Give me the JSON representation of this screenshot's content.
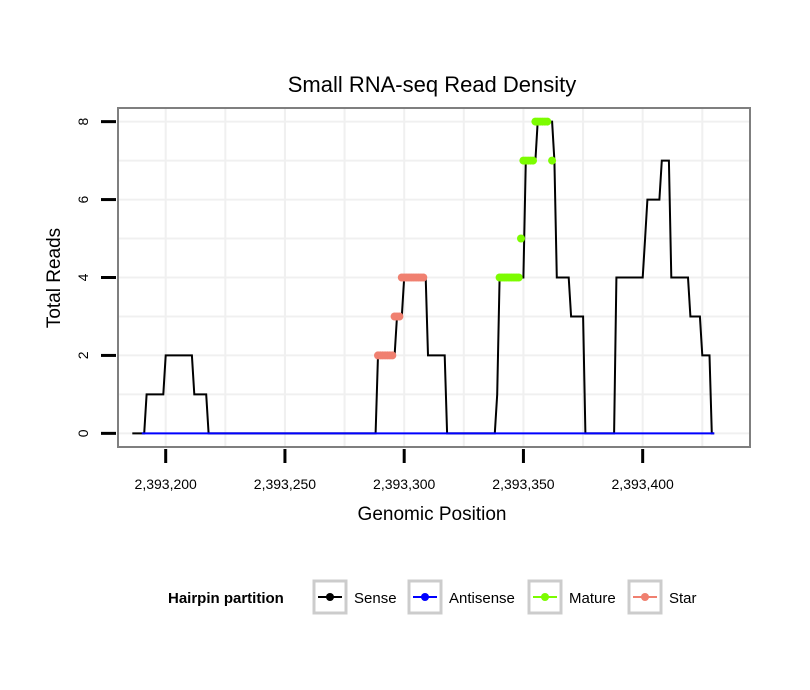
{
  "chart_data": {
    "type": "line",
    "title": "Small RNA-seq Read Density",
    "xlabel": "Genomic Position",
    "ylabel": "Total Reads",
    "xlim": [
      2393180,
      2393445
    ],
    "ylim": [
      -0.35,
      8.35
    ],
    "x_ticks": [
      2393200,
      2393250,
      2393300,
      2393350,
      2393400
    ],
    "x_tick_labels": [
      "2,393,200",
      "2,393,250",
      "2,393,300",
      "2,393,350",
      "2,393,400"
    ],
    "y_ticks": [
      0,
      2,
      4,
      6,
      8
    ],
    "y_tick_labels": [
      "0",
      "2",
      "4",
      "6",
      "8"
    ],
    "legend": {
      "title": "Hairpin partition",
      "position": "bottom",
      "entries": [
        {
          "label": "Sense",
          "color": "#000000"
        },
        {
          "label": "Antisense",
          "color": "#0000ff"
        },
        {
          "label": "Mature",
          "color": "#7cfc00"
        },
        {
          "label": "Star",
          "color": "#f08070"
        }
      ]
    },
    "series": [
      {
        "name": "Sense",
        "color": "#000000",
        "points": [
          [
            2393186,
            0
          ],
          [
            2393191,
            0
          ],
          [
            2393192,
            1
          ],
          [
            2393199,
            1
          ],
          [
            2393200,
            2
          ],
          [
            2393211,
            2
          ],
          [
            2393212,
            1
          ],
          [
            2393217,
            1
          ],
          [
            2393218,
            0
          ],
          [
            2393288,
            0
          ],
          [
            2393289,
            2
          ],
          [
            2393296,
            2
          ],
          [
            2393297,
            3
          ],
          [
            2393299,
            3
          ],
          [
            2393300,
            4
          ],
          [
            2393309,
            4
          ],
          [
            2393310,
            2
          ],
          [
            2393317,
            2
          ],
          [
            2393318,
            0
          ],
          [
            2393338,
            0
          ],
          [
            2393339,
            1
          ],
          [
            2393340,
            4
          ],
          [
            2393350,
            4
          ],
          [
            2393351,
            7
          ],
          [
            2393355,
            7
          ],
          [
            2393356,
            8
          ],
          [
            2393362,
            8
          ],
          [
            2393363,
            7
          ],
          [
            2393364,
            4
          ],
          [
            2393369,
            4
          ],
          [
            2393370,
            3
          ],
          [
            2393375,
            3
          ],
          [
            2393376,
            0
          ],
          [
            2393388,
            0
          ],
          [
            2393389,
            4
          ],
          [
            2393400,
            4
          ],
          [
            2393401,
            5
          ],
          [
            2393402,
            6
          ],
          [
            2393407,
            6
          ],
          [
            2393408,
            7
          ],
          [
            2393411,
            7
          ],
          [
            2393412,
            4
          ],
          [
            2393419,
            4
          ],
          [
            2393420,
            3
          ],
          [
            2393424,
            3
          ],
          [
            2393425,
            2
          ],
          [
            2393428,
            2
          ],
          [
            2393429,
            0
          ],
          [
            2393430,
            0
          ]
        ]
      },
      {
        "name": "Antisense",
        "color": "#0000ff",
        "points": [
          [
            2393190,
            0
          ],
          [
            2393430,
            0
          ]
        ]
      },
      {
        "name": "Mature",
        "color": "#7cfc00",
        "points": [
          [
            2393340,
            4
          ],
          [
            2393341,
            4
          ],
          [
            2393342,
            4
          ],
          [
            2393343,
            4
          ],
          [
            2393344,
            4
          ],
          [
            2393345,
            4
          ],
          [
            2393346,
            4
          ],
          [
            2393347,
            4
          ],
          [
            2393348,
            4
          ],
          [
            2393349,
            5
          ],
          [
            2393350,
            7
          ],
          [
            2393351,
            7
          ],
          [
            2393352,
            7
          ],
          [
            2393353,
            7
          ],
          [
            2393354,
            7
          ],
          [
            2393355,
            8
          ],
          [
            2393356,
            8
          ],
          [
            2393357,
            8
          ],
          [
            2393358,
            8
          ],
          [
            2393359,
            8
          ],
          [
            2393360,
            8
          ],
          [
            2393362,
            7
          ]
        ]
      },
      {
        "name": "Star",
        "color": "#f08070",
        "points": [
          [
            2393289,
            2
          ],
          [
            2393290,
            2
          ],
          [
            2393291,
            2
          ],
          [
            2393292,
            2
          ],
          [
            2393293,
            2
          ],
          [
            2393294,
            2
          ],
          [
            2393295,
            2
          ],
          [
            2393296,
            3
          ],
          [
            2393297,
            3
          ],
          [
            2393298,
            3
          ],
          [
            2393299,
            4
          ],
          [
            2393300,
            4
          ],
          [
            2393301,
            4
          ],
          [
            2393302,
            4
          ],
          [
            2393303,
            4
          ],
          [
            2393304,
            4
          ],
          [
            2393305,
            4
          ],
          [
            2393306,
            4
          ],
          [
            2393307,
            4
          ],
          [
            2393308,
            4
          ]
        ]
      }
    ]
  }
}
